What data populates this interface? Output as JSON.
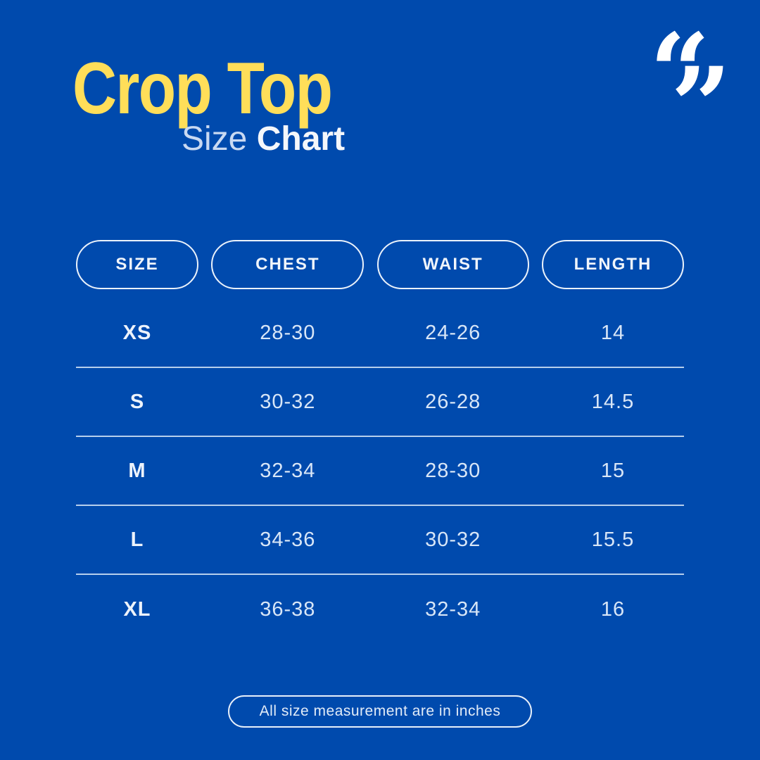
{
  "page": {
    "background_color": "#004AAD",
    "accent_yellow": "#FFDE59",
    "text_light": "#D8E6F7",
    "text_white": "#F4F7FB"
  },
  "header": {
    "title": "Crop Top",
    "subtitle_light": "Size",
    "subtitle_bold": "Chart"
  },
  "icons": {
    "quote_open": "“",
    "quote_close": "”"
  },
  "table": {
    "headers": [
      "SIZE",
      "CHEST",
      "WAIST",
      "LENGTH"
    ],
    "rows": [
      {
        "size": "XS",
        "chest": "28-30",
        "waist": "24-26",
        "length": "14"
      },
      {
        "size": "S",
        "chest": "30-32",
        "waist": "26-28",
        "length": "14.5"
      },
      {
        "size": "M",
        "chest": "32-34",
        "waist": "28-30",
        "length": "15"
      },
      {
        "size": "L",
        "chest": "34-36",
        "waist": "30-32",
        "length": "15.5"
      },
      {
        "size": "XL",
        "chest": "36-38",
        "waist": "32-34",
        "length": "16"
      }
    ]
  },
  "footer": {
    "note": "All size measurement are in inches"
  },
  "chart_data": {
    "type": "table",
    "title": "Crop Top Size Chart",
    "columns": [
      "SIZE",
      "CHEST",
      "WAIST",
      "LENGTH"
    ],
    "rows": [
      [
        "XS",
        "28-30",
        "24-26",
        "14"
      ],
      [
        "S",
        "30-32",
        "26-28",
        "14.5"
      ],
      [
        "M",
        "32-34",
        "28-30",
        "15"
      ],
      [
        "L",
        "34-36",
        "30-32",
        "15.5"
      ],
      [
        "XL",
        "36-38",
        "32-34",
        "16"
      ]
    ],
    "units": "inches",
    "note": "All size measurement are in inches"
  }
}
